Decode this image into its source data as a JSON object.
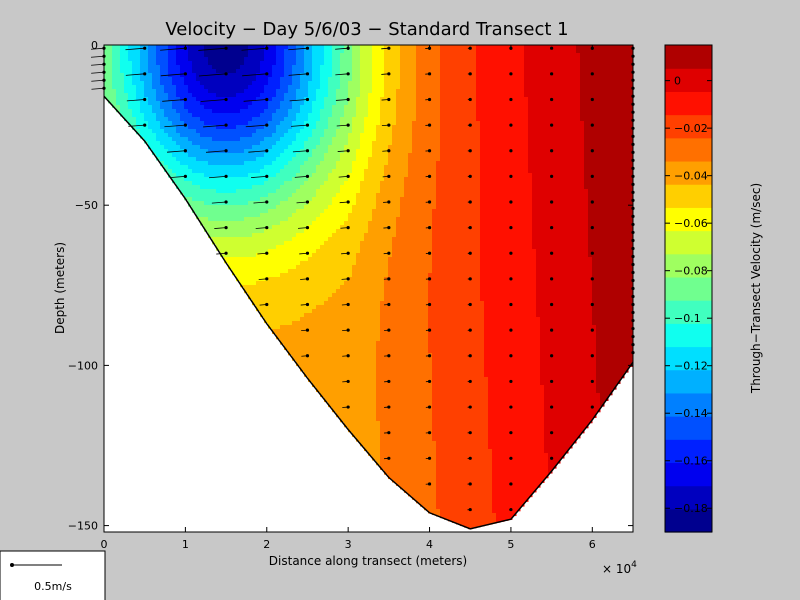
{
  "chart_data": {
    "type": "heatmap",
    "title": "Velocity − Day 5/6/03 − Standard Transect 1",
    "xlabel": "Distance along transect (meters)",
    "ylabel": "Depth (meters)",
    "x_multiplier": "× 10",
    "x_multiplier_exp": "4",
    "xlim": [
      0,
      65000
    ],
    "ylim": [
      -152,
      0
    ],
    "x_ticks": [
      0,
      1,
      2,
      3,
      4,
      5,
      6
    ],
    "y_ticks": [
      0,
      -50,
      -100,
      -150
    ],
    "colorbar": {
      "label": "Through−Transect Velocity (m/sec)",
      "range": [
        -0.19,
        0.015
      ],
      "ticks": [
        0,
        -0.02,
        -0.04,
        -0.06,
        -0.08,
        -0.1,
        -0.12,
        -0.14,
        -0.16,
        -0.18
      ],
      "tick_labels": [
        "0",
        "−0.02",
        "−0.04",
        "−0.06",
        "−0.08",
        "−0.1",
        "−0.12",
        "−0.14",
        "−0.16",
        "−0.18"
      ],
      "colors": [
        "#00008f",
        "#0000bf",
        "#0000ef",
        "#0020ff",
        "#0050ff",
        "#0080ff",
        "#00b0ff",
        "#00dfff",
        "#10ffef",
        "#40ffbf",
        "#70ff8f",
        "#9fff60",
        "#cfff30",
        "#ffff00",
        "#ffcf00",
        "#ff9f00",
        "#ff7000",
        "#ff4000",
        "#ff1000",
        "#df0000",
        "#af0000"
      ]
    },
    "bottom_profile": [
      {
        "x": 0,
        "depth": -16
      },
      {
        "x": 5000,
        "depth": -30
      },
      {
        "x": 10000,
        "depth": -48
      },
      {
        "x": 15000,
        "depth": -68
      },
      {
        "x": 20000,
        "depth": -87
      },
      {
        "x": 25000,
        "depth": -104
      },
      {
        "x": 30000,
        "depth": -120
      },
      {
        "x": 35000,
        "depth": -135
      },
      {
        "x": 40000,
        "depth": -146
      },
      {
        "x": 45000,
        "depth": -151
      },
      {
        "x": 50000,
        "depth": -148
      },
      {
        "x": 55000,
        "depth": -133
      },
      {
        "x": 60000,
        "depth": -117
      },
      {
        "x": 65000,
        "depth": -99
      }
    ],
    "core": {
      "x": 15000,
      "depth": 0,
      "velocity": -0.18
    },
    "stations": [
      0,
      5000,
      10000,
      15000,
      20000,
      25000,
      30000,
      35000,
      40000,
      45000,
      50000,
      55000,
      60000,
      65000
    ],
    "scale_arrow": {
      "label": "0.5m/s",
      "speed": 0.5
    }
  }
}
